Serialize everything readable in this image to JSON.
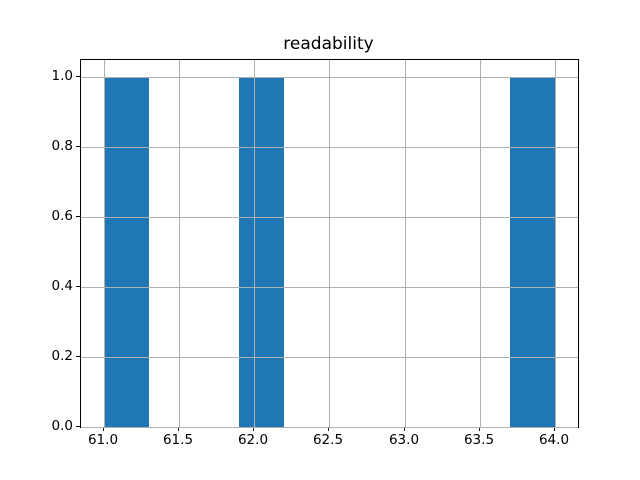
{
  "title": "readability",
  "chart_data": {
    "type": "bar",
    "subtype": "histogram",
    "title": "readability",
    "bins": [
      {
        "start": 61.0,
        "end": 61.3,
        "count": 1
      },
      {
        "start": 61.9,
        "end": 62.2,
        "count": 1
      },
      {
        "start": 63.7,
        "end": 64.0,
        "count": 1
      }
    ],
    "bin_width": 0.3,
    "xlim": [
      60.85,
      64.15
    ],
    "ylim": [
      0,
      1.05
    ],
    "xticks": [
      61.0,
      61.5,
      62.0,
      62.5,
      63.0,
      63.5,
      64.0
    ],
    "xtick_labels": [
      "61.0",
      "61.5",
      "62.0",
      "62.5",
      "63.0",
      "63.5",
      "64.0"
    ],
    "yticks": [
      0.0,
      0.2,
      0.4,
      0.6,
      0.8,
      1.0
    ],
    "ytick_labels": [
      "0.0",
      "0.2",
      "0.4",
      "0.6",
      "0.8",
      "1.0"
    ],
    "grid": true,
    "legend": null,
    "xlabel": "",
    "ylabel": "",
    "bar_color": "#1f77b4",
    "grid_color": "#b0b0b0",
    "spine_color": "#000000",
    "background_color": "#ffffff"
  }
}
